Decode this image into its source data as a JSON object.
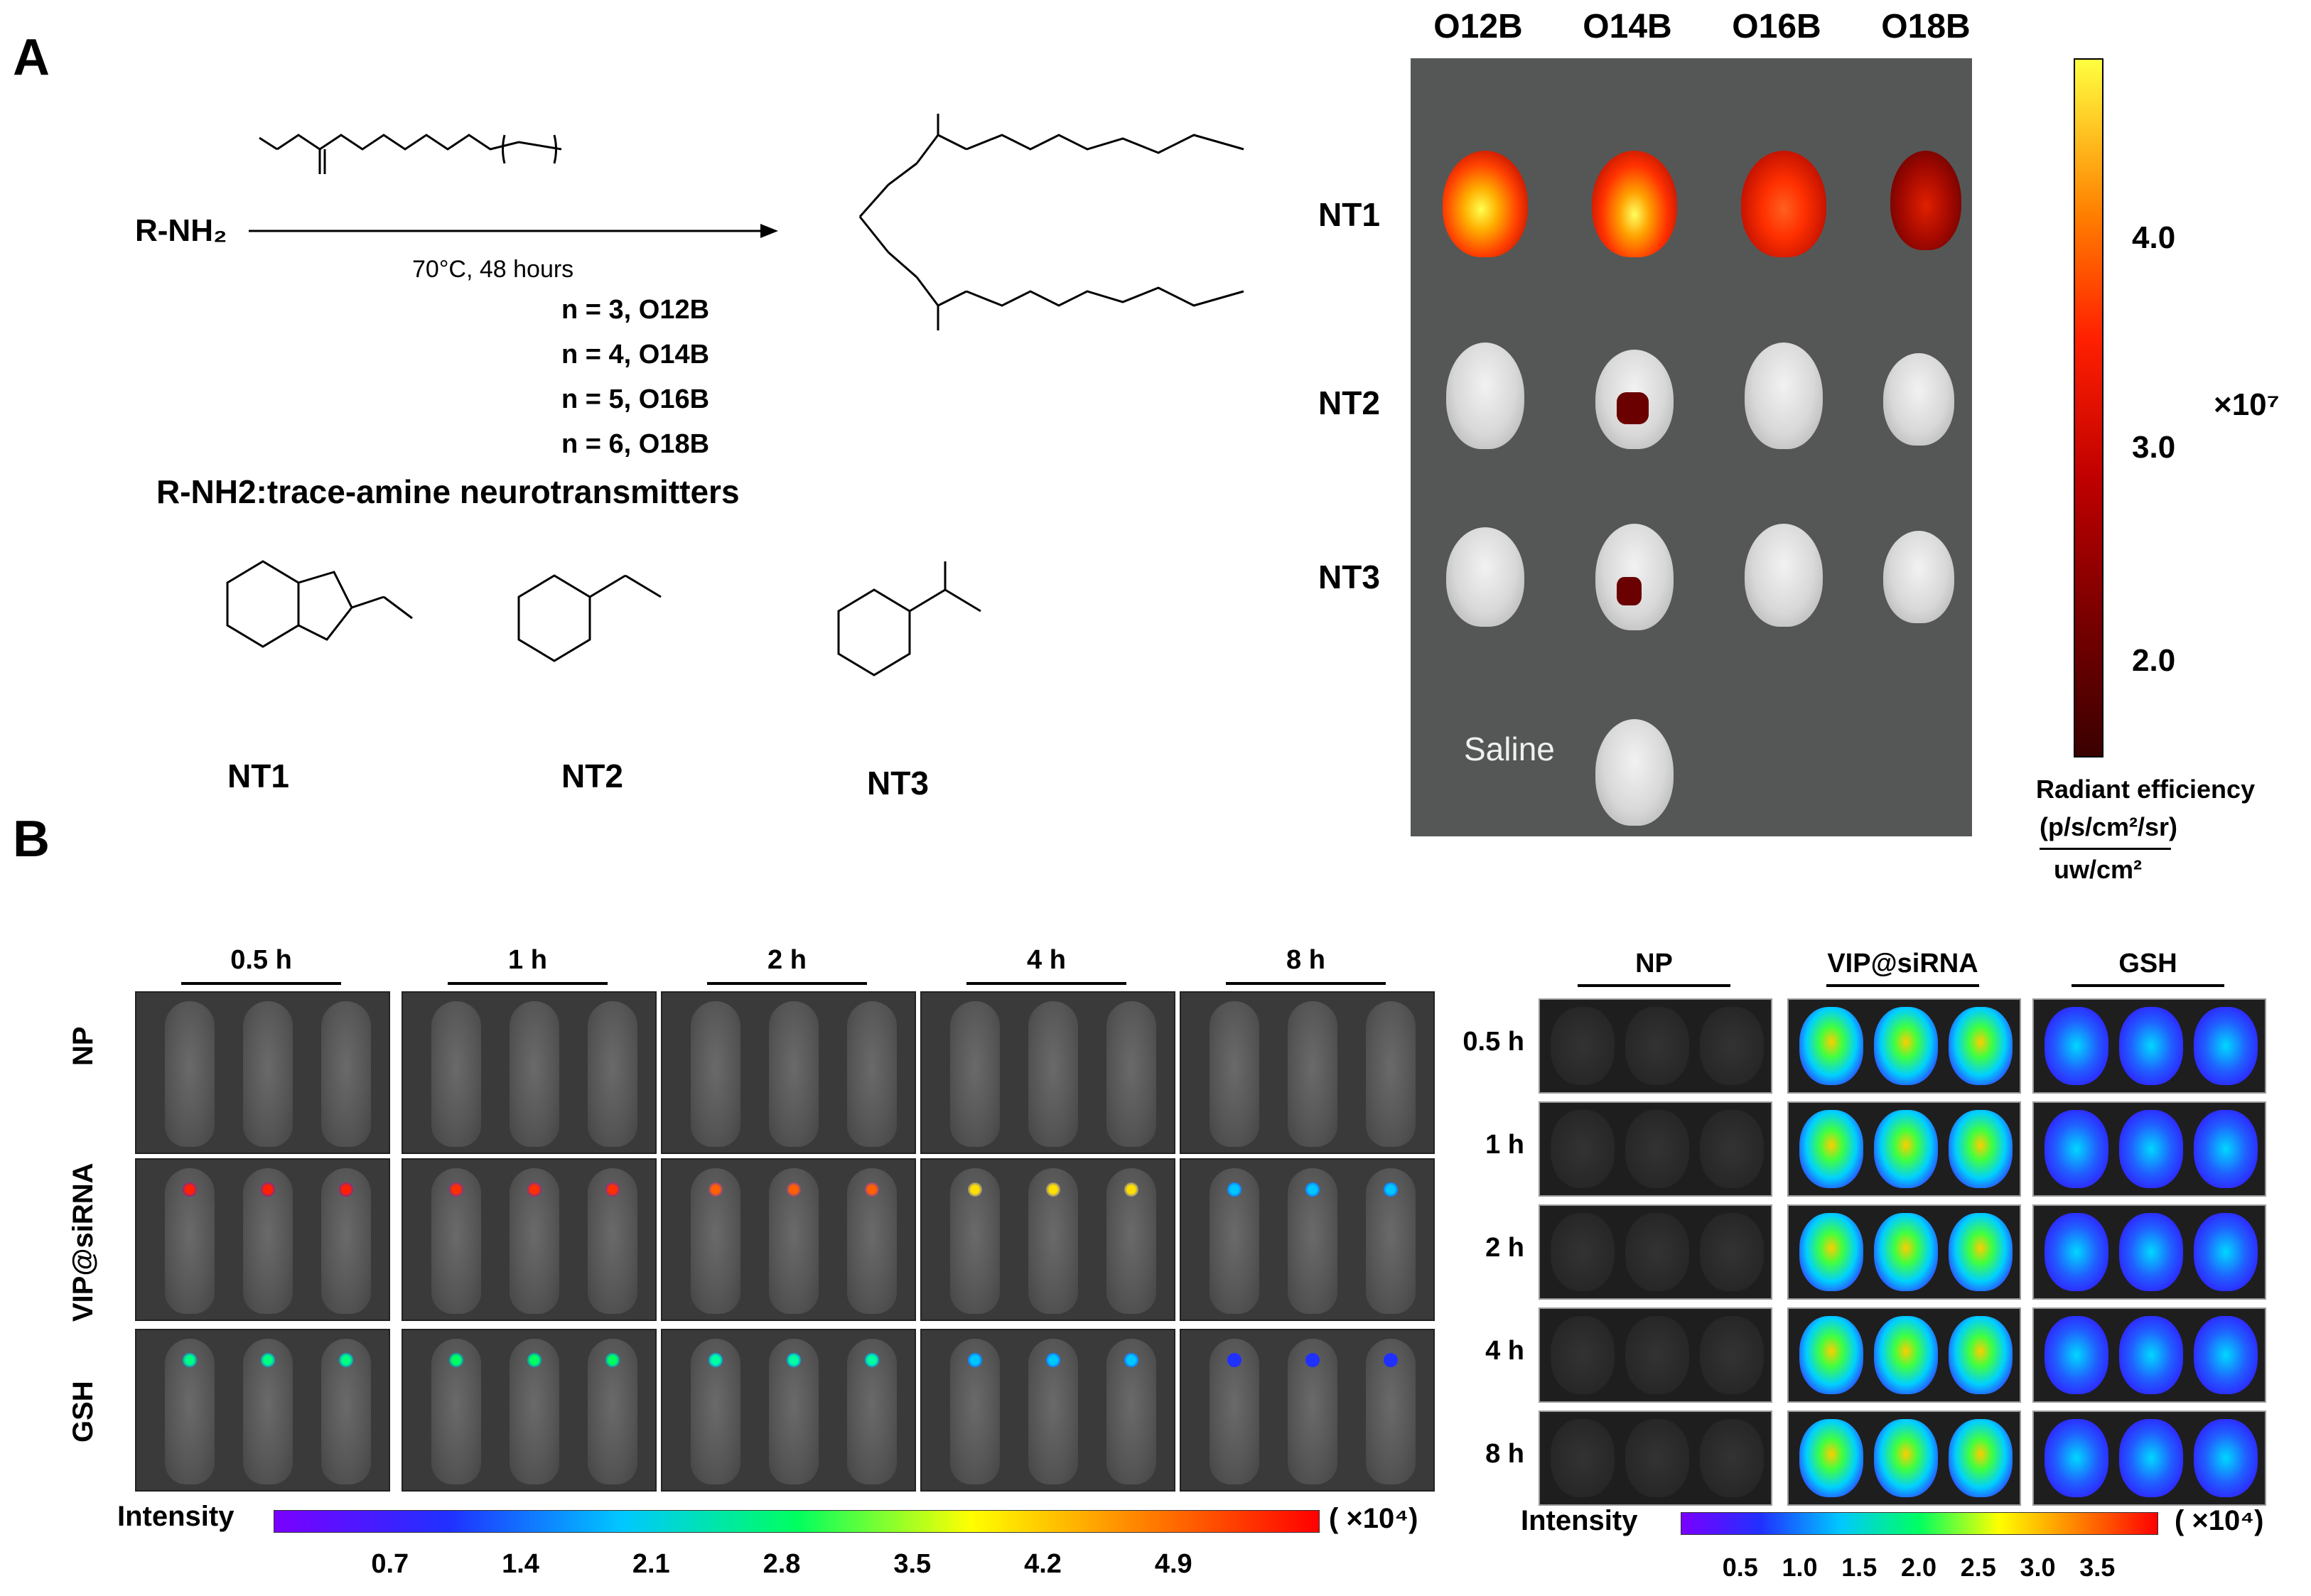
{
  "panel_a": {
    "letter": "A",
    "reactant": "R-NH₂",
    "conditions": "70°C, 48 hours",
    "n_list": [
      "n = 3, O12B",
      "n = 4, O14B",
      "n = 5, O16B",
      "n = 6, O18B"
    ],
    "caption": "R-NH2:trace-amine neurotransmitters",
    "structures": [
      "NT1",
      "NT2",
      "NT3"
    ],
    "image": {
      "columns": [
        "O12B",
        "O14B",
        "O16B",
        "O18B"
      ],
      "rows": [
        "NT1",
        "NT2",
        "NT3"
      ],
      "saline_label": "Saline",
      "colorbar": {
        "ticks": [
          "4.0",
          "3.0",
          "2.0"
        ],
        "multiplier": "×10⁷",
        "label_line1": "Radiant efficiency",
        "label_line2": "(p/s/cm²/sr)",
        "label_line3": "uw/cm²"
      }
    }
  },
  "panel_b": {
    "letter": "B",
    "left": {
      "times": [
        "0.5 h",
        "1 h",
        "2 h",
        "4 h",
        "8 h"
      ],
      "groups": [
        "NP",
        "VIP@siRNA",
        "GSH"
      ],
      "colorbar_label": "Intensity",
      "multiplier": "( ×10⁴)",
      "ticks": [
        "0.7",
        "1.4",
        "2.1",
        "2.8",
        "3.5",
        "4.2",
        "4.9"
      ]
    },
    "right": {
      "groups": [
        "NP",
        "VIP@siRNA",
        "GSH"
      ],
      "times": [
        "0.5 h",
        "1 h",
        "2 h",
        "4 h",
        "8 h"
      ],
      "colorbar_label": "Intensity",
      "multiplier": "( ×10⁴)",
      "ticks": [
        "0.5",
        "1.0",
        "1.5",
        "2.0",
        "2.5",
        "3.0",
        "3.5"
      ]
    }
  },
  "colors": {
    "heat_low": "#5a0000",
    "heat_mid": "#e02000",
    "heat_high": "#ffff40",
    "rainbow": [
      "#7a00ff",
      "#2030ff",
      "#00c8ff",
      "#00ff60",
      "#ffff00",
      "#ff8000",
      "#ff0000"
    ]
  }
}
